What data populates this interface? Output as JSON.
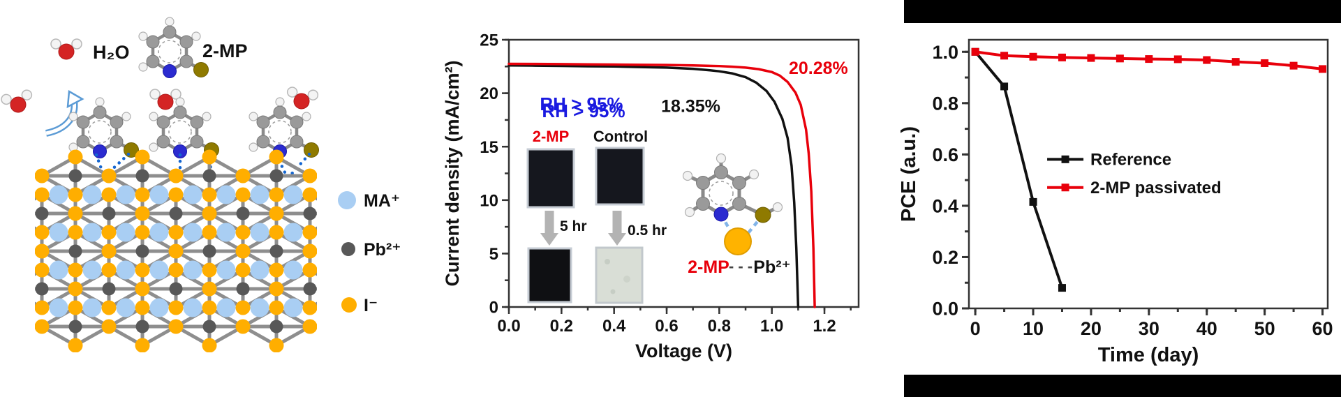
{
  "left_panel": {
    "h2o_label": "H₂O",
    "mp_top_label": "2-MP",
    "legend": [
      {
        "label": "MA⁺",
        "color": "#a9cef3"
      },
      {
        "label": "Pb²⁺",
        "color": "#585858"
      },
      {
        "label": "I⁻",
        "color": "#ffae00"
      }
    ],
    "atom_colors": {
      "iodine": "#ffae00",
      "lead": "#585858",
      "ma_cation": "#a9cef3",
      "oxygen": "#d42424",
      "hydrogen": "#f4f4f4",
      "carbon": "#9a9a9a",
      "nitrogen": "#2b2bd0",
      "sulfur": "#8f7a00",
      "hydrogen_bond_blue": "#1566d0"
    }
  },
  "middle_panel": {
    "rh_label": "RH > 95%",
    "rh_color": "#1a1ae0",
    "sample_left": "2-MP",
    "sample_left_color": "#e8000b",
    "sample_right": "Control",
    "time_left": "5 hr",
    "time_right": "0.5 hr",
    "mol_label_mp": "2-MP",
    "mol_label_dash": "- - -",
    "mol_label_pb": "Pb²⁺"
  },
  "chart_data": [
    {
      "id": "jv-curve",
      "type": "line",
      "title": "",
      "xlabel": "Voltage (V)",
      "ylabel": "Current density (mA/cm²)",
      "xlim": [
        0,
        1.33
      ],
      "ylim": [
        0,
        25
      ],
      "grid": false,
      "xtick_vals": [
        0,
        0.2,
        0.4,
        0.6,
        0.8,
        1.0,
        1.2
      ],
      "xtick_labels": [
        "0.0",
        "0.2",
        "0.4",
        "0.6",
        "0.8",
        "1.0",
        "1.2"
      ],
      "xminor": 0.1,
      "ytick_vals": [
        0,
        5,
        10,
        15,
        20,
        25
      ],
      "ytick_labels": [
        "0",
        "5",
        "10",
        "15",
        "20",
        "25"
      ],
      "yminor": 2.5,
      "series": [
        {
          "name": "Control",
          "color": "#111111",
          "label": "18.35%",
          "label_fx": 0.52,
          "label_fy": 0.27,
          "x": [
            0,
            0.1,
            0.2,
            0.3,
            0.4,
            0.5,
            0.6,
            0.7,
            0.75,
            0.8,
            0.85,
            0.9,
            0.94,
            0.98,
            1.01,
            1.04,
            1.06,
            1.075,
            1.085,
            1.093,
            1.1
          ],
          "y": [
            22.6,
            22.58,
            22.55,
            22.52,
            22.5,
            22.45,
            22.4,
            22.28,
            22.18,
            22.05,
            21.85,
            21.5,
            21.0,
            20.2,
            19.2,
            17.6,
            15.8,
            13.2,
            9.8,
            5.5,
            0
          ]
        },
        {
          "name": "2-MP",
          "color": "#e8000b",
          "label": "20.28%",
          "label_fx": 0.885,
          "label_fy": 0.128,
          "x": [
            0,
            0.1,
            0.2,
            0.3,
            0.4,
            0.5,
            0.6,
            0.7,
            0.8,
            0.85,
            0.9,
            0.95,
            1.0,
            1.03,
            1.06,
            1.09,
            1.11,
            1.13,
            1.14,
            1.15,
            1.158,
            1.163
          ],
          "y": [
            22.75,
            22.74,
            22.72,
            22.7,
            22.68,
            22.66,
            22.64,
            22.6,
            22.54,
            22.48,
            22.4,
            22.25,
            21.98,
            21.65,
            21.05,
            20.05,
            18.9,
            16.6,
            14.4,
            10.8,
            5.5,
            0
          ]
        }
      ],
      "annotations": [
        {
          "text": "RH > 95%",
          "color": "#1a1ae0",
          "fx": 0.2075,
          "fy": 0.264,
          "size": 26
        }
      ]
    },
    {
      "id": "stability",
      "type": "line",
      "title": "",
      "xlabel": "Time (day)",
      "ylabel": "PCE (a.u.)",
      "xlim": [
        -1.1,
        60.9
      ],
      "ylim": [
        0,
        1.047
      ],
      "grid": false,
      "xtick_vals": [
        0,
        10,
        20,
        30,
        40,
        50,
        60
      ],
      "xtick_labels": [
        "0",
        "10",
        "20",
        "30",
        "40",
        "50",
        "60"
      ],
      "xminor": 5,
      "ytick_vals": [
        0,
        0.2,
        0.4,
        0.6,
        0.8,
        1.0
      ],
      "ytick_labels": [
        "0.0",
        "0.2",
        "0.4",
        "0.6",
        "0.8",
        "1.0"
      ],
      "yminor": 0.1,
      "legend": {
        "fx": 0.218,
        "fy": 0.445,
        "dfy": 0.105
      },
      "series": [
        {
          "name": "Reference",
          "color": "#111111",
          "marker": "square",
          "x": [
            0,
            5,
            10,
            15
          ],
          "y": [
            1.0,
            0.865,
            0.415,
            0.08
          ]
        },
        {
          "name": "2-MP passivated",
          "color": "#e8000b",
          "marker": "square",
          "x": [
            0,
            5,
            10,
            15,
            20,
            25,
            30,
            35,
            40,
            45,
            50,
            55,
            60
          ],
          "y": [
            1.0,
            0.985,
            0.981,
            0.978,
            0.976,
            0.974,
            0.972,
            0.971,
            0.968,
            0.961,
            0.956,
            0.946,
            0.933
          ]
        }
      ]
    }
  ]
}
